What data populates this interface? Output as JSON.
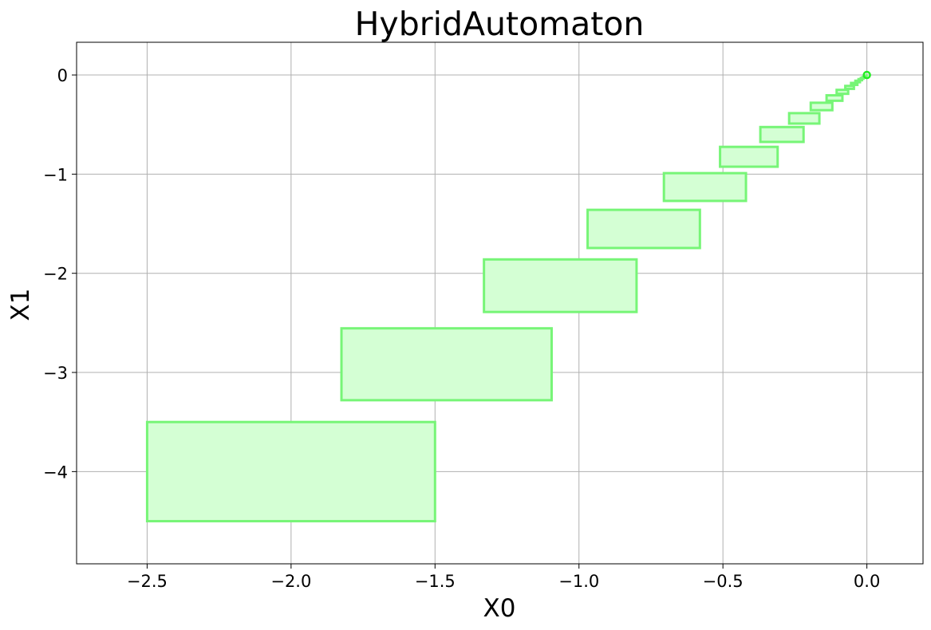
{
  "chart_data": {
    "type": "area",
    "title": "HybridAutomaton",
    "xlabel": "X0",
    "ylabel": "X1",
    "xlim": [
      -2.745,
      0.195
    ],
    "ylim": [
      -4.93,
      0.33
    ],
    "xticks": [
      -2.5,
      -2.0,
      -1.5,
      -1.0,
      -0.5,
      0.0
    ],
    "xtick_labels": [
      "−2.5",
      "−2.0",
      "−1.5",
      "−1.0",
      "−0.5",
      "0.0"
    ],
    "yticks": [
      0,
      -1,
      -2,
      -3,
      -4
    ],
    "ytick_labels": [
      "0",
      "−1",
      "−2",
      "−3",
      "−4"
    ],
    "grid": true,
    "series": [
      {
        "color_fill": "#d4ffd4",
        "color_edge": "#77f577",
        "boxes": [
          {
            "x": [
              -2.5,
              -1.5
            ],
            "y": [
              -4.5,
              -3.5
            ]
          },
          {
            "x": [
              -1.825,
              -1.095
            ],
            "y": [
              -3.28,
              -2.555
            ]
          },
          {
            "x": [
              -1.33,
              -0.8
            ],
            "y": [
              -2.39,
              -1.86
            ]
          },
          {
            "x": [
              -0.97,
              -0.58
            ],
            "y": [
              -1.745,
              -1.36
            ]
          },
          {
            "x": [
              -0.705,
              -0.42
            ],
            "y": [
              -1.27,
              -0.99
            ]
          },
          {
            "x": [
              -0.51,
              -0.31
            ],
            "y": [
              -0.925,
              -0.725
            ]
          },
          {
            "x": [
              -0.37,
              -0.22
            ],
            "y": [
              -0.675,
              -0.525
            ]
          },
          {
            "x": [
              -0.27,
              -0.165
            ],
            "y": [
              -0.49,
              -0.385
            ]
          },
          {
            "x": [
              -0.195,
              -0.12
            ],
            "y": [
              -0.355,
              -0.28
            ]
          },
          {
            "x": [
              -0.14,
              -0.085
            ],
            "y": [
              -0.26,
              -0.205
            ]
          },
          {
            "x": [
              -0.105,
              -0.065
            ],
            "y": [
              -0.19,
              -0.15
            ]
          },
          {
            "x": [
              -0.075,
              -0.045
            ],
            "y": [
              -0.14,
              -0.11
            ]
          },
          {
            "x": [
              -0.055,
              -0.033
            ],
            "y": [
              -0.1,
              -0.08
            ]
          },
          {
            "x": [
              -0.04,
              -0.024
            ],
            "y": [
              -0.073,
              -0.058
            ]
          },
          {
            "x": [
              -0.029,
              -0.017
            ],
            "y": [
              -0.053,
              -0.042
            ]
          },
          {
            "x": [
              -0.021,
              -0.012
            ],
            "y": [
              -0.038,
              -0.03
            ]
          },
          {
            "x": [
              -0.015,
              -0.008
            ],
            "y": [
              -0.027,
              -0.021
            ]
          },
          {
            "x": [
              -0.01,
              -0.005
            ],
            "y": [
              -0.019,
              -0.014
            ]
          },
          {
            "x": [
              -0.007,
              -0.003
            ],
            "y": [
              -0.013,
              -0.009
            ]
          },
          {
            "x": [
              -0.004,
              -0.001
            ],
            "y": [
              -0.008,
              -0.005
            ]
          }
        ],
        "end_point": {
          "x": 0.0,
          "y": 0.0
        }
      }
    ]
  }
}
